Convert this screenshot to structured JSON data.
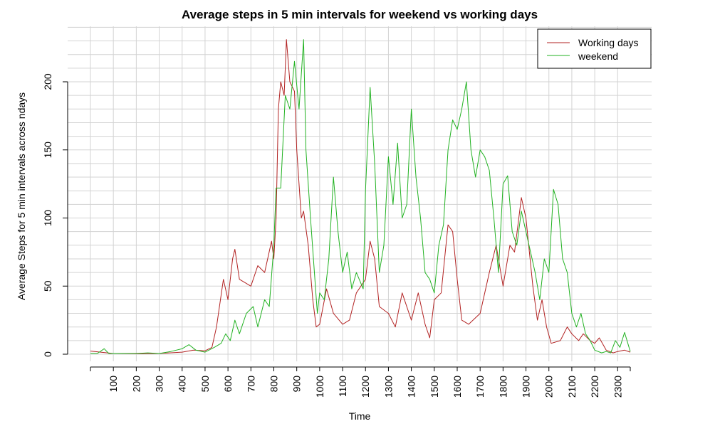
{
  "chart_data": {
    "type": "line",
    "title": "Average steps in 5 min intervals for weekend vs working days",
    "xlabel": "Time",
    "ylabel": "Average Steps for 5 min intervals across ndays",
    "xlim": [
      0,
      2355
    ],
    "ylim": [
      0,
      230
    ],
    "x_ticks": [
      100,
      200,
      300,
      400,
      500,
      600,
      700,
      800,
      900,
      1000,
      1100,
      1200,
      1300,
      1400,
      1500,
      1600,
      1700,
      1800,
      1900,
      2000,
      2100,
      2200,
      2300
    ],
    "y_ticks": [
      0,
      50,
      100,
      150,
      200
    ],
    "grid": true,
    "legend": {
      "position": "top-right"
    },
    "colors": {
      "working": "#b22222",
      "weekend": "#22b222",
      "grid": "#d3d3d3",
      "axis": "#000000"
    },
    "series": [
      {
        "name": "Working days",
        "color": "#b22222",
        "points": [
          [
            0,
            2.3
          ],
          [
            100,
            0.5
          ],
          [
            200,
            0.3
          ],
          [
            300,
            0.5
          ],
          [
            400,
            1.5
          ],
          [
            450,
            3.0
          ],
          [
            500,
            2.5
          ],
          [
            530,
            5.0
          ],
          [
            550,
            20.0
          ],
          [
            580,
            55.0
          ],
          [
            600,
            40.0
          ],
          [
            620,
            70.0
          ],
          [
            630,
            77.0
          ],
          [
            650,
            55.0
          ],
          [
            700,
            50.0
          ],
          [
            730,
            65.0
          ],
          [
            760,
            60.0
          ],
          [
            790,
            83.0
          ],
          [
            800,
            70.0
          ],
          [
            810,
            100.0
          ],
          [
            820,
            180.0
          ],
          [
            830,
            200.0
          ],
          [
            845,
            190.0
          ],
          [
            855,
            231.0
          ],
          [
            870,
            200.0
          ],
          [
            890,
            193.0
          ],
          [
            900,
            150.0
          ],
          [
            920,
            100.0
          ],
          [
            930,
            105.0
          ],
          [
            950,
            80.0
          ],
          [
            970,
            40.0
          ],
          [
            985,
            20.0
          ],
          [
            1000,
            22.0
          ],
          [
            1030,
            48.0
          ],
          [
            1060,
            30.0
          ],
          [
            1100,
            22.0
          ],
          [
            1130,
            25.0
          ],
          [
            1160,
            45.0
          ],
          [
            1200,
            55.0
          ],
          [
            1220,
            83.0
          ],
          [
            1240,
            70.0
          ],
          [
            1260,
            35.0
          ],
          [
            1300,
            30.0
          ],
          [
            1330,
            20.0
          ],
          [
            1360,
            45.0
          ],
          [
            1400,
            25.0
          ],
          [
            1430,
            45.0
          ],
          [
            1460,
            22.0
          ],
          [
            1480,
            12.0
          ],
          [
            1500,
            40.0
          ],
          [
            1530,
            45.0
          ],
          [
            1560,
            95.0
          ],
          [
            1580,
            90.0
          ],
          [
            1600,
            55.0
          ],
          [
            1620,
            25.0
          ],
          [
            1650,
            22.0
          ],
          [
            1700,
            30.0
          ],
          [
            1740,
            60.0
          ],
          [
            1770,
            80.0
          ],
          [
            1800,
            50.0
          ],
          [
            1830,
            80.0
          ],
          [
            1850,
            75.0
          ],
          [
            1880,
            115.0
          ],
          [
            1900,
            100.0
          ],
          [
            1930,
            50.0
          ],
          [
            1950,
            25.0
          ],
          [
            1970,
            40.0
          ],
          [
            1990,
            20.0
          ],
          [
            2010,
            8.0
          ],
          [
            2050,
            10.0
          ],
          [
            2080,
            20.0
          ],
          [
            2100,
            15.0
          ],
          [
            2130,
            10.0
          ],
          [
            2150,
            15.0
          ],
          [
            2180,
            10.0
          ],
          [
            2200,
            8.0
          ],
          [
            2220,
            12.0
          ],
          [
            2250,
            3.0
          ],
          [
            2280,
            1.0
          ],
          [
            2300,
            2.0
          ],
          [
            2330,
            3.0
          ],
          [
            2355,
            1.5
          ]
        ]
      },
      {
        "name": "weekend",
        "color": "#22b222",
        "points": [
          [
            0,
            0.5
          ],
          [
            30,
            0.5
          ],
          [
            60,
            4.0
          ],
          [
            80,
            0.5
          ],
          [
            100,
            0.5
          ],
          [
            200,
            0.5
          ],
          [
            250,
            1.0
          ],
          [
            300,
            0.5
          ],
          [
            350,
            2.0
          ],
          [
            400,
            4.0
          ],
          [
            430,
            7.0
          ],
          [
            460,
            3.0
          ],
          [
            500,
            1.5
          ],
          [
            540,
            5.0
          ],
          [
            570,
            8.0
          ],
          [
            590,
            15.0
          ],
          [
            610,
            10.0
          ],
          [
            630,
            25.0
          ],
          [
            650,
            15.0
          ],
          [
            680,
            30.0
          ],
          [
            710,
            35.0
          ],
          [
            730,
            20.0
          ],
          [
            760,
            40.0
          ],
          [
            780,
            35.0
          ],
          [
            800,
            80.0
          ],
          [
            810,
            122.0
          ],
          [
            830,
            122.0
          ],
          [
            850,
            190.0
          ],
          [
            870,
            180.0
          ],
          [
            890,
            215.0
          ],
          [
            910,
            180.0
          ],
          [
            930,
            231.0
          ],
          [
            940,
            150.0
          ],
          [
            960,
            100.0
          ],
          [
            990,
            30.0
          ],
          [
            1000,
            45.0
          ],
          [
            1020,
            40.0
          ],
          [
            1040,
            70.0
          ],
          [
            1060,
            130.0
          ],
          [
            1080,
            90.0
          ],
          [
            1100,
            60.0
          ],
          [
            1120,
            75.0
          ],
          [
            1140,
            48.0
          ],
          [
            1160,
            60.0
          ],
          [
            1190,
            48.0
          ],
          [
            1200,
            120.0
          ],
          [
            1220,
            196.0
          ],
          [
            1240,
            140.0
          ],
          [
            1260,
            60.0
          ],
          [
            1280,
            80.0
          ],
          [
            1300,
            145.0
          ],
          [
            1320,
            110.0
          ],
          [
            1340,
            155.0
          ],
          [
            1360,
            100.0
          ],
          [
            1380,
            110.0
          ],
          [
            1400,
            180.0
          ],
          [
            1420,
            130.0
          ],
          [
            1440,
            100.0
          ],
          [
            1460,
            60.0
          ],
          [
            1480,
            55.0
          ],
          [
            1500,
            45.0
          ],
          [
            1520,
            80.0
          ],
          [
            1540,
            95.0
          ],
          [
            1560,
            150.0
          ],
          [
            1580,
            172.0
          ],
          [
            1600,
            165.0
          ],
          [
            1620,
            180.0
          ],
          [
            1640,
            200.0
          ],
          [
            1660,
            150.0
          ],
          [
            1680,
            130.0
          ],
          [
            1700,
            150.0
          ],
          [
            1720,
            145.0
          ],
          [
            1740,
            135.0
          ],
          [
            1760,
            100.0
          ],
          [
            1780,
            60.0
          ],
          [
            1800,
            125.0
          ],
          [
            1820,
            131.0
          ],
          [
            1840,
            90.0
          ],
          [
            1860,
            80.0
          ],
          [
            1880,
            105.0
          ],
          [
            1900,
            90.0
          ],
          [
            1920,
            75.0
          ],
          [
            1940,
            60.0
          ],
          [
            1960,
            40.0
          ],
          [
            1980,
            70.0
          ],
          [
            2000,
            60.0
          ],
          [
            2020,
            121.0
          ],
          [
            2040,
            110.0
          ],
          [
            2060,
            70.0
          ],
          [
            2080,
            60.0
          ],
          [
            2100,
            30.0
          ],
          [
            2120,
            20.0
          ],
          [
            2140,
            30.0
          ],
          [
            2160,
            15.0
          ],
          [
            2180,
            10.0
          ],
          [
            2200,
            3.0
          ],
          [
            2230,
            1.0
          ],
          [
            2250,
            2.0
          ],
          [
            2270,
            1.0
          ],
          [
            2290,
            10.0
          ],
          [
            2310,
            5.0
          ],
          [
            2330,
            16.0
          ],
          [
            2355,
            2.0
          ]
        ]
      }
    ]
  }
}
